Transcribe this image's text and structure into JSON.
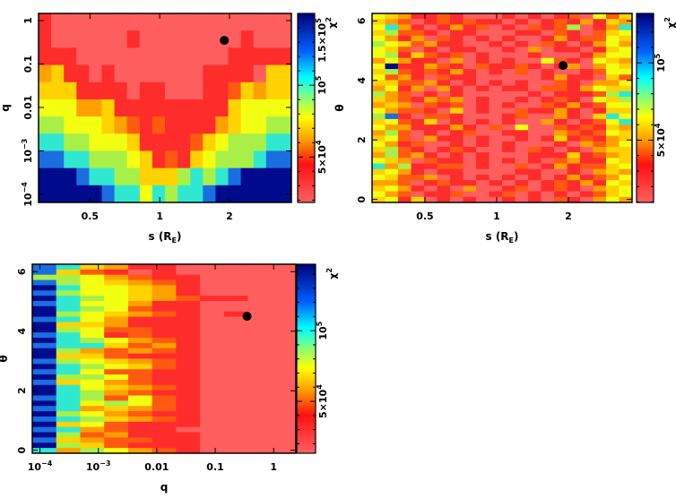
{
  "palette": [
    "#ff5e5e",
    "#ff2c2c",
    "#ff5a10",
    "#ffa000",
    "#ffd200",
    "#f2ff10",
    "#a8f048",
    "#30e8d0",
    "#1a6ee0",
    "#000a8c"
  ],
  "chart_data": [
    {
      "type": "heatmap",
      "xlabel": "s (R",
      "xlabel_sub": "E",
      "xlabel_end": ")",
      "ylabel": "q",
      "xscale": "log",
      "yscale": "log",
      "xlim": [
        0.3,
        3.7
      ],
      "ylim": [
        6.5e-05,
        1.46
      ],
      "xticks": [
        {
          "v": 0.5,
          "label": "0.5"
        },
        {
          "v": 1,
          "label": "1"
        },
        {
          "v": 2,
          "label": "2"
        }
      ],
      "yticks": [
        {
          "v": 1,
          "label": "1"
        },
        {
          "v": 0.1,
          "label": "0.1"
        },
        {
          "v": 0.01,
          "label": "0.01"
        },
        {
          "v": 0.001,
          "label": "10",
          "sup": "−3"
        },
        {
          "v": 0.0001,
          "label": "10",
          "sup": "−4"
        }
      ],
      "colorbar": {
        "label": "χ",
        "label_sup": "2",
        "range": [
          18400,
          150000
        ],
        "ticks": [
          {
            "v": 50000,
            "label": "5×10",
            "sup": "4"
          },
          {
            "v": 100000,
            "label": "10",
            "sup": "5"
          },
          {
            "v": 150000,
            "label": "1.5×10",
            "sup": "5"
          }
        ]
      },
      "best_fit": {
        "x": 1.9,
        "y": 0.35
      },
      "color_level_grid": [
        "10000000000000000000",
        "10000001000000001000",
        "11100000000000011111",
        "34110100000001111044",
        "44411110110001124344",
        "55533411111111145555",
        "66555432121111345566",
        "77665554111124566677",
        "88776665412145666788",
        "99987766444676789999",
        "99999877576778999999"
      ]
    },
    {
      "type": "heatmap",
      "xlabel": "s (R",
      "xlabel_sub": "E",
      "xlabel_end": ")",
      "ylabel": "θ",
      "xscale": "log",
      "yscale": "linear",
      "xlim": [
        0.3,
        3.7
      ],
      "ylim": [
        -0.1,
        6.25
      ],
      "xticks": [
        {
          "v": 0.5,
          "label": "0.5"
        },
        {
          "v": 1,
          "label": "1"
        },
        {
          "v": 2,
          "label": "2"
        }
      ],
      "yticks": [
        {
          "v": 0,
          "label": "0"
        },
        {
          "v": 2,
          "label": "2"
        },
        {
          "v": 4,
          "label": "4"
        },
        {
          "v": 6,
          "label": "6"
        }
      ],
      "colorbar": {
        "label": "χ",
        "label_sup": "2",
        "range": [
          9700,
          132000
        ],
        "ticks": [
          {
            "v": 50000,
            "label": "5×10",
            "sup": "4"
          },
          {
            "v": 100000,
            "label": "10",
            "sup": "5"
          }
        ]
      },
      "best_fit": {
        "x": 1.9,
        "y": 4.5
      },
      "color_level_grid": [
        "54311210001010120524",
        "43201212110101213143",
        "57310131201021260137",
        "46221011000110210245",
        "53130210101001312254",
        "65423110010102101353",
        "54201011001030110145",
        "56142120100010001355",
        "35311030101005210543",
        "59113210211210130354",
        "46212131010201001255",
        "52310211000001311042",
        "44223101010100210335",
        "35130310101102213544",
        "63201010000010111267",
        "43213230100101210546",
        "34302120101002131255",
        "53221040100211310144",
        "68102210001200310475",
        "45214010101003101257",
        "53311131020500212143",
        "36201012001100321254",
        "45203110100101412134",
        "53120010101000103235",
        "46210121001021010344",
        "36231010100011141234",
        "54302110101010231154",
        "73611220100201312245",
        "45310110000110010343",
        "54223010101010131235",
        "33201211010101213154",
        "45310103001201210345",
        "53201120012010101245",
        "45140101001010210353"
      ]
    },
    {
      "type": "heatmap",
      "xlabel": "q",
      "xlabel_sub": "",
      "xlabel_end": "",
      "ylabel": "θ",
      "xscale": "log",
      "yscale": "linear",
      "xlim": [
        7.4e-05,
        2.4
      ],
      "ylim": [
        -0.1,
        6.25
      ],
      "xticks": [
        {
          "v": 0.0001,
          "label": "10",
          "sup": "−4"
        },
        {
          "v": 0.001,
          "label": "10",
          "sup": "−3"
        },
        {
          "v": 0.01,
          "label": "0.01"
        },
        {
          "v": 0.1,
          "label": "0.1"
        },
        {
          "v": 1,
          "label": "1"
        }
      ],
      "yticks": [
        {
          "v": 0,
          "label": "0"
        },
        {
          "v": 2,
          "label": "2"
        },
        {
          "v": 4,
          "label": "4"
        },
        {
          "v": 6,
          "label": "6"
        }
      ],
      "colorbar": {
        "label": "χ",
        "label_sup": "2",
        "range": [
          13300,
          147000
        ],
        "ticks": [
          {
            "v": 50000,
            "label": "5×10",
            "sup": "4"
          },
          {
            "v": 100000,
            "label": "10",
            "sup": "5"
          }
        ]
      },
      "best_fit": {
        "x": 0.35,
        "y": 4.5
      },
      "color_level_grid": [
        "87431100000",
        "84210100000",
        "66532110000",
        "86543210000",
        "97554310000",
        "86554310000",
        "97654321100",
        "87553110000",
        "97652110000",
        "96543210100",
        "87531110000",
        "94431110000",
        "96522110000",
        "87512110000",
        "97653210000",
        "87742310000",
        "96323210000",
        "94421110000",
        "86543210000",
        "97654210000",
        "87522110000",
        "96652110000",
        "84532110000",
        "97543210000",
        "97632110000",
        "87625210000",
        "97565210000",
        "87343210000",
        "96532110000",
        "87643210000",
        "94521110000",
        "87321100000",
        "96231110000",
        "84322110000",
        "96421110000",
        "73653210000"
      ]
    }
  ]
}
